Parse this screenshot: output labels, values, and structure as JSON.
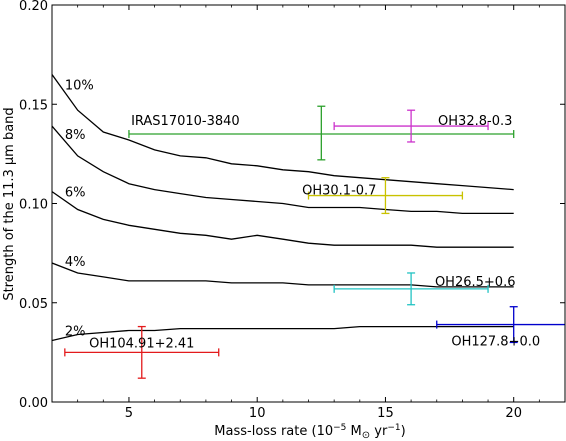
{
  "chart_data": {
    "type": "line",
    "title": "",
    "xlabel": "Mass-loss rate (10",
    "xlabel_exp": "−5",
    "xlabel_mid": " M",
    "xlabel_sun": "⊙",
    "xlabel_mid2": " yr",
    "xlabel_exp2": "−1",
    "xlabel_end": ")",
    "ylabel": "Strength of the 11.3 μm band",
    "xlim": [
      2,
      22
    ],
    "ylim": [
      0.0,
      0.2
    ],
    "grid": false,
    "x_ticks": [
      "5",
      "10",
      "15",
      "20"
    ],
    "x_tick_values": [
      5,
      10,
      15,
      20
    ],
    "y_ticks": [
      "0.00",
      "0.05",
      "0.10",
      "0.15",
      "0.20"
    ],
    "y_tick_values": [
      0.0,
      0.05,
      0.1,
      0.15,
      0.2
    ],
    "series": [
      {
        "name": "10%",
        "x": [
          2,
          3,
          4,
          5,
          6,
          7,
          8,
          9,
          10,
          11,
          12,
          13,
          14,
          15,
          16,
          17,
          18,
          19,
          20
        ],
        "values": [
          0.165,
          0.147,
          0.136,
          0.132,
          0.127,
          0.124,
          0.123,
          0.12,
          0.119,
          0.117,
          0.116,
          0.114,
          0.113,
          0.112,
          0.111,
          0.11,
          0.109,
          0.108,
          0.107
        ]
      },
      {
        "name": "8%",
        "x": [
          2,
          3,
          4,
          5,
          6,
          7,
          8,
          9,
          10,
          11,
          12,
          13,
          14,
          15,
          16,
          17,
          18,
          19,
          20
        ],
        "values": [
          0.139,
          0.124,
          0.116,
          0.11,
          0.107,
          0.105,
          0.103,
          0.102,
          0.101,
          0.1,
          0.098,
          0.098,
          0.098,
          0.097,
          0.096,
          0.096,
          0.095,
          0.095,
          0.095
        ]
      },
      {
        "name": "6%",
        "x": [
          2,
          3,
          4,
          5,
          6,
          7,
          8,
          9,
          10,
          11,
          12,
          13,
          14,
          15,
          16,
          17,
          18,
          19,
          20
        ],
        "values": [
          0.106,
          0.097,
          0.092,
          0.089,
          0.087,
          0.085,
          0.084,
          0.082,
          0.084,
          0.082,
          0.08,
          0.079,
          0.079,
          0.079,
          0.079,
          0.078,
          0.078,
          0.078,
          0.078
        ]
      },
      {
        "name": "4%",
        "x": [
          2,
          3,
          4,
          5,
          6,
          7,
          8,
          9,
          10,
          11,
          12,
          13,
          14,
          15,
          16,
          17,
          18,
          19,
          20
        ],
        "values": [
          0.07,
          0.065,
          0.063,
          0.061,
          0.061,
          0.061,
          0.061,
          0.06,
          0.06,
          0.06,
          0.059,
          0.059,
          0.059,
          0.059,
          0.059,
          0.058,
          0.058,
          0.058,
          0.058
        ]
      },
      {
        "name": "2%",
        "x": [
          2,
          3,
          4,
          5,
          6,
          7,
          8,
          9,
          10,
          11,
          12,
          13,
          14,
          15,
          16,
          17,
          18,
          19,
          20
        ],
        "values": [
          0.031,
          0.034,
          0.035,
          0.036,
          0.036,
          0.037,
          0.037,
          0.037,
          0.037,
          0.037,
          0.037,
          0.037,
          0.038,
          0.038,
          0.038,
          0.038,
          0.038,
          0.038,
          0.038
        ]
      }
    ],
    "curve_labels": [
      {
        "text": "10%",
        "x": 2.5,
        "y": 0.16
      },
      {
        "text": "8%",
        "x": 2.5,
        "y": 0.135
      },
      {
        "text": "6%",
        "x": 2.5,
        "y": 0.106
      },
      {
        "text": "4%",
        "x": 2.5,
        "y": 0.071
      },
      {
        "text": "2%",
        "x": 2.5,
        "y": 0.036
      }
    ],
    "error_points": [
      {
        "name": "IRAS17010-3840",
        "x": 12.5,
        "y": 0.135,
        "x_err": [
          5,
          20
        ],
        "y_err": [
          0.122,
          0.149
        ],
        "color": "#2ca02c",
        "label_x": 7.2,
        "label_y": 0.142
      },
      {
        "name": "OH32.8-0.3",
        "x": 16,
        "y": 0.139,
        "x_err": [
          13,
          19
        ],
        "y_err": [
          0.131,
          0.147
        ],
        "color": "#cc33cc",
        "label_x": 18.5,
        "label_y": 0.142
      },
      {
        "name": "OH30.1-0.7",
        "x": 15,
        "y": 0.104,
        "x_err": [
          12,
          18
        ],
        "y_err": [
          0.095,
          0.113
        ],
        "color": "#c9c200",
        "label_x": 13.2,
        "label_y": 0.107
      },
      {
        "name": "OH26.5+0.6",
        "x": 16,
        "y": 0.057,
        "x_err": [
          13,
          19
        ],
        "y_err": [
          0.049,
          0.065
        ],
        "color": "#22c3c3",
        "label_x": 18.5,
        "label_y": 0.061
      },
      {
        "name": "OH104.91+2.41",
        "x": 5.5,
        "y": 0.025,
        "x_err": [
          2.5,
          8.5
        ],
        "y_err": [
          0.012,
          0.038
        ],
        "color": "#e31a1c",
        "label_x": 5.5,
        "label_y": 0.03
      },
      {
        "name": "OH127.8+0.0",
        "x": 20,
        "y": 0.039,
        "x_err": [
          17,
          22.5
        ],
        "y_err": [
          0.03,
          0.048
        ],
        "color": "#0000cc",
        "label_x": 19.3,
        "label_y": 0.031
      }
    ]
  }
}
